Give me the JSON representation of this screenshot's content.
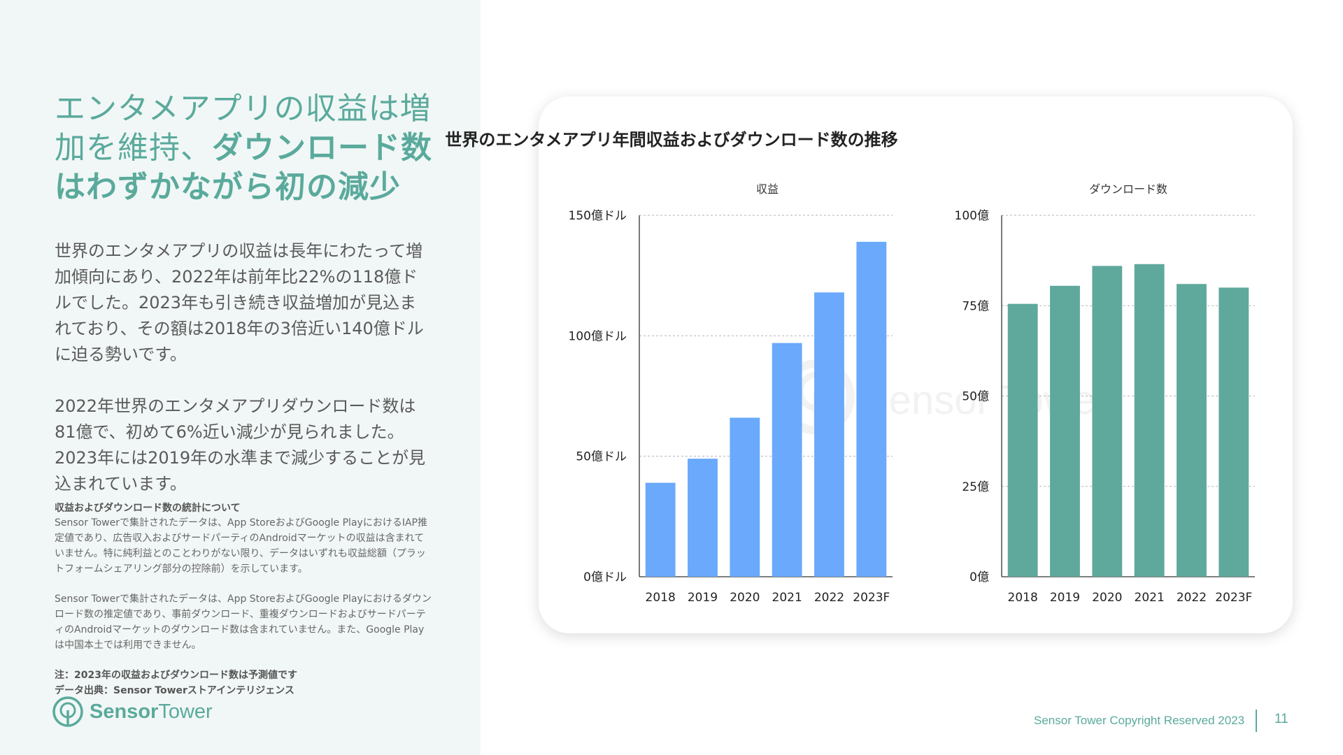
{
  "headline": {
    "part1": "エンタメアプリの収益は増加を維持、",
    "part2": "ダウンロード数はわずかながら初の減少"
  },
  "body": {
    "para1": "世界のエンタメアプリの収益は長年にわたって増加傾向にあり、2022年は前年比22%の118億ドルでした。2023年も引き続き収益増加が見込まれており、その額は2018年の3倍近い140億ドルに迫る勢いです。",
    "para2": "2022年世界のエンタメアプリダウンロード数は81億で、初めて6%近い減少が見られました。2023年には2019年の水準まで減少することが見込まれています。"
  },
  "notes": {
    "title": "収益およびダウンロード数の統計について",
    "text1": "Sensor Towerで集計されたデータは、App StoreおよびGoogle PlayにおけるIAP推定値であり、広告収入およびサードパーティのAndroidマーケットの収益は含まれていません。特に純利益とのことわりがない限り、データはいずれも収益総額（プラットフォームシェアリング部分の控除前）を示しています。",
    "text2": "Sensor Towerで集計されたデータは、App StoreおよびGoogle Playにおけるダウンロード数の推定値であり、事前ダウンロード、重複ダウンロードおよびサードパーティのAndroidマーケットのダウンロード数は含まれていません。また、Google Playは中国本土では利用できません。",
    "note": "注：2023年の収益およびダウンロード数は予測値です",
    "source": "データ出典：Sensor Towerストアインテリジェンス"
  },
  "logo": {
    "word1": "Sensor",
    "word2": "Tower"
  },
  "footer": {
    "copyright": "Sensor Tower Copyright Reserved 2023",
    "page": "11"
  },
  "watermark": "Sensor Tower",
  "colors": {
    "accent": "#5aaa9c",
    "revenue_bar": "#6aa9fb",
    "download_bar": "#5fa89c"
  },
  "chart_data": [
    {
      "type": "bar",
      "title": "世界のエンタメアプリ年間収益およびダウンロード数の推移",
      "subtitle": "収益",
      "categories": [
        "2018",
        "2019",
        "2020",
        "2021",
        "2022",
        "2023F"
      ],
      "values": [
        39,
        49,
        66,
        97,
        118,
        139
      ],
      "ylim": [
        0,
        150
      ],
      "yticks": [
        0,
        50,
        100,
        150
      ],
      "ytick_labels": [
        "0億ドル",
        "50億ドル",
        "100億ドル",
        "150億ドル"
      ],
      "grid": true
    },
    {
      "type": "bar",
      "subtitle": "ダウンロード数",
      "categories": [
        "2018",
        "2019",
        "2020",
        "2021",
        "2022",
        "2023F"
      ],
      "values": [
        75.5,
        80.5,
        86,
        86.5,
        81,
        80
      ],
      "ylim": [
        0,
        100
      ],
      "yticks": [
        0,
        25,
        50,
        75,
        100
      ],
      "ytick_labels": [
        "0億",
        "25億",
        "50億",
        "75億",
        "100億"
      ],
      "grid": true
    }
  ]
}
